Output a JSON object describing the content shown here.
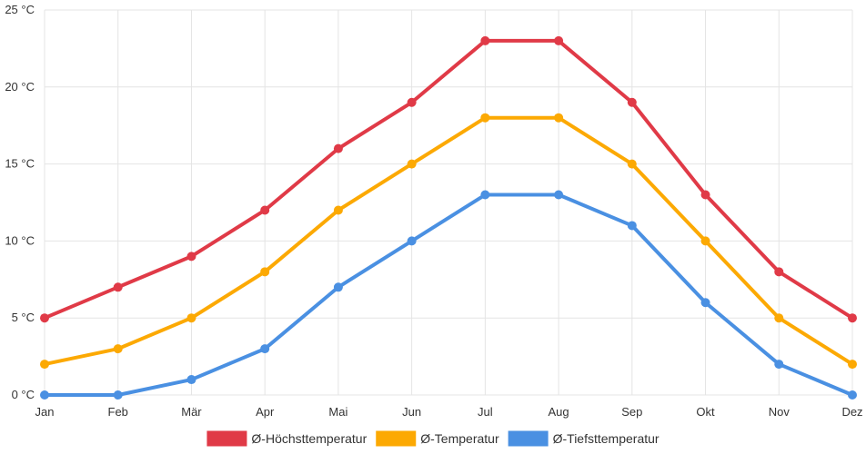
{
  "chart_data": {
    "type": "line",
    "categories": [
      "Jan",
      "Feb",
      "Mär",
      "Apr",
      "Mai",
      "Jun",
      "Jul",
      "Aug",
      "Sep",
      "Okt",
      "Nov",
      "Dez"
    ],
    "y_unit": "°C",
    "ylim": [
      0,
      25
    ],
    "y_ticks": [
      0,
      5,
      10,
      15,
      20,
      25
    ],
    "y_tick_labels": [
      "0 °C",
      "5 °C",
      "10 °C",
      "15 °C",
      "20 °C",
      "25 °C"
    ],
    "grid": true,
    "legend_position": "bottom-center",
    "series": [
      {
        "name": "Ø-Höchsttemperatur",
        "color": "#e03a47",
        "values": [
          5,
          7,
          9,
          12,
          16,
          19,
          23,
          23,
          19,
          13,
          8,
          5
        ]
      },
      {
        "name": "Ø-Temperatur",
        "color": "#fca903",
        "values": [
          2,
          3,
          5,
          8,
          12,
          15,
          18,
          18,
          15,
          10,
          5,
          2
        ]
      },
      {
        "name": "Ø-Tiefsttemperatur",
        "color": "#4a90e2",
        "values": [
          0,
          0,
          1,
          3,
          7,
          10,
          13,
          13,
          11,
          6,
          2,
          0
        ]
      }
    ]
  }
}
